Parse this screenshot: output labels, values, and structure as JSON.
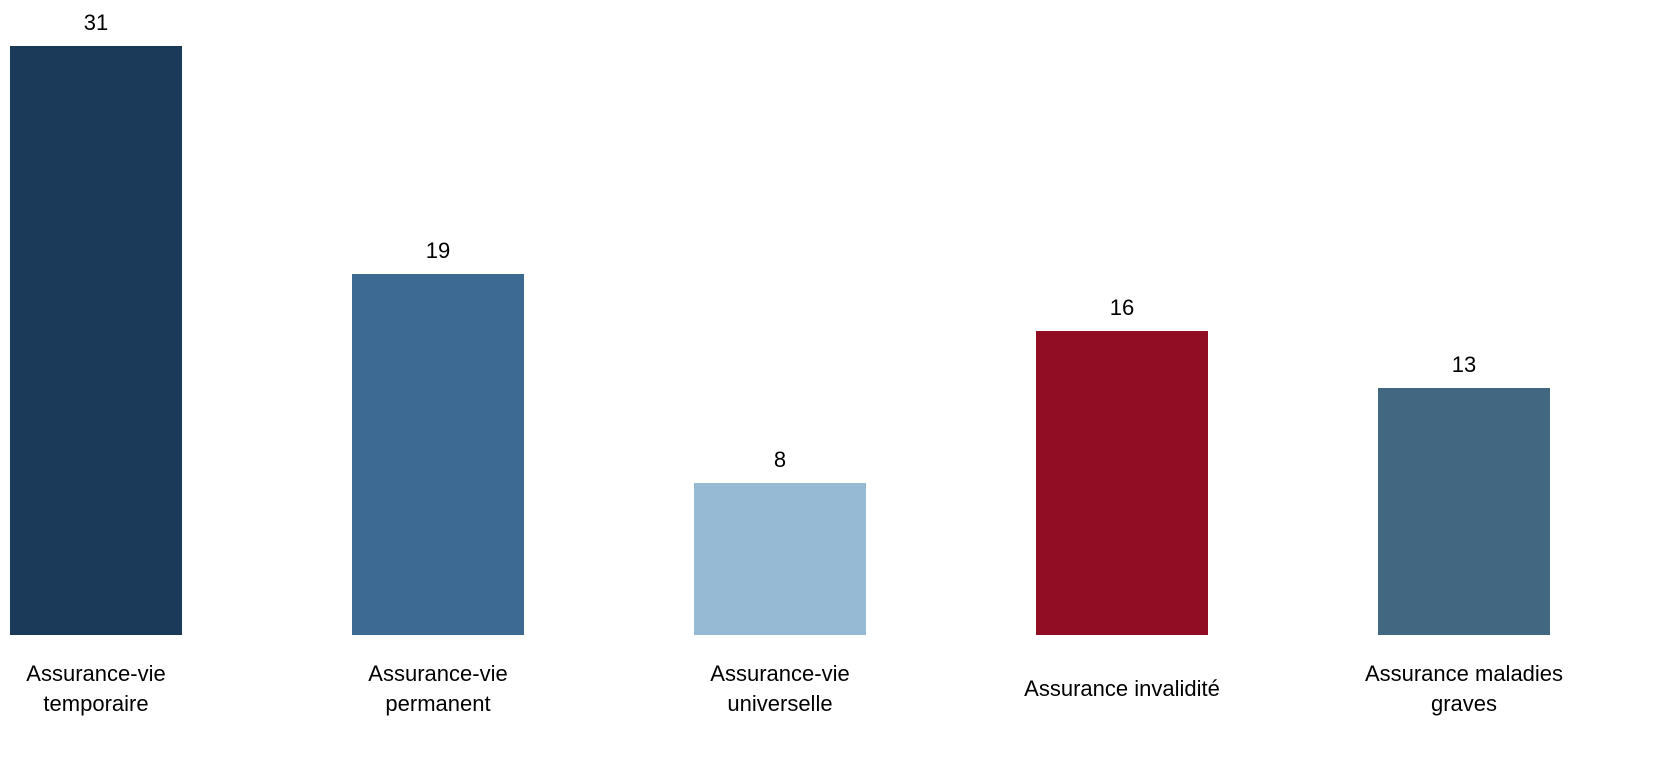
{
  "chart_data": {
    "type": "bar",
    "categories": [
      [
        "Assurance-vie",
        "temporaire"
      ],
      [
        "Assurance-vie",
        "permanent"
      ],
      [
        "Assurance-vie",
        "universelle"
      ],
      [
        "Assurance invalidité"
      ],
      [
        "Assurance maladies",
        "graves"
      ]
    ],
    "values": [
      31,
      19,
      8,
      16,
      13
    ],
    "value_labels": [
      "31",
      "19",
      "8",
      "16",
      "13"
    ],
    "colors": [
      "#1b3a59",
      "#3d6a93",
      "#96b9d4",
      "#910d24",
      "#426781"
    ],
    "ylim": [
      0,
      31
    ],
    "grid": false,
    "axes_visible": false,
    "data_labels": "above-bars"
  }
}
